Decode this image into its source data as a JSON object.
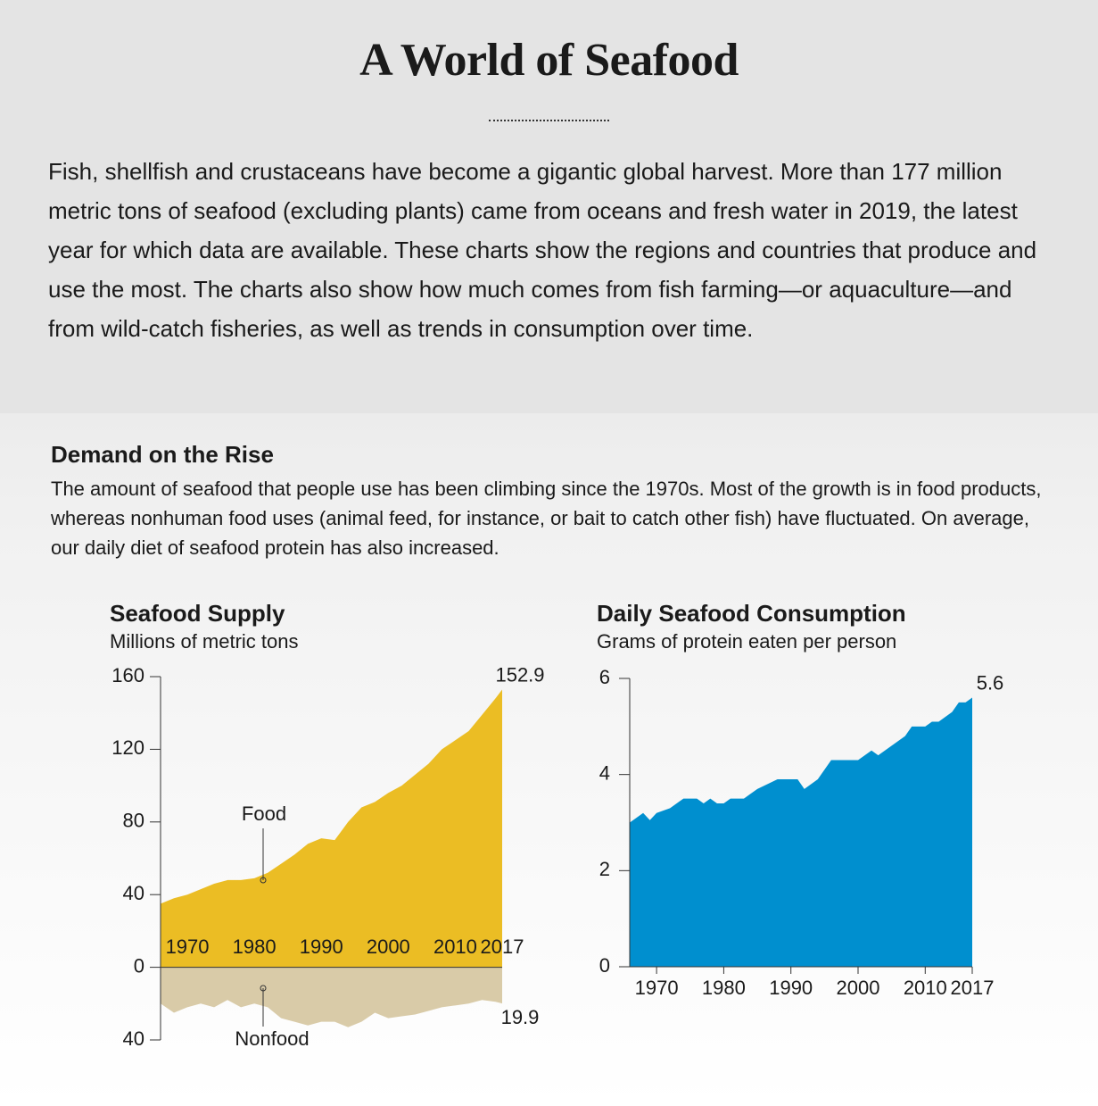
{
  "header": {
    "title": "A World of Seafood",
    "intro": "Fish, shellfish and crustaceans have become a gigantic global harvest. More than 177 million metric tons of seafood (excluding plants) came from oceans and fresh water in 2019, the latest year for which data are available. These charts show the regions and countries that produce and use the most. The charts also show how much comes from fish farming—or aquaculture—and from wild-catch fisheries, as well as trends in consumption over time."
  },
  "section": {
    "title": "Demand on the Rise",
    "description": "The amount of seafood that people use has been climbing since the 1970s. Most of the growth is in food products, whereas nonhuman food uses (animal feed, for instance, or bait to catch other fish) have fluctuated. On average, our daily diet of seafood protein has also increased."
  },
  "chart_data": [
    {
      "type": "area",
      "title": "Seafood Supply",
      "subtitle": "Millions of metric tons",
      "x": [
        1966,
        1968,
        1970,
        1972,
        1974,
        1976,
        1978,
        1980,
        1982,
        1984,
        1986,
        1988,
        1990,
        1992,
        1994,
        1996,
        1998,
        2000,
        2002,
        2004,
        2006,
        2008,
        2010,
        2012,
        2014,
        2016,
        2017
      ],
      "series": [
        {
          "name": "Food",
          "color": "#ebbd24",
          "values": [
            35,
            38,
            40,
            43,
            46,
            48,
            48,
            49,
            52,
            57,
            62,
            68,
            71,
            70,
            80,
            88,
            91,
            96,
            100,
            106,
            112,
            120,
            125,
            130,
            139,
            148,
            152.9
          ]
        },
        {
          "name": "Nonfood",
          "color": "#d9cba8",
          "values": [
            -20,
            -25,
            -22,
            -20,
            -22,
            -18,
            -22,
            -20,
            -22,
            -28,
            -30,
            -32,
            -30,
            -30,
            -33,
            -30,
            -25,
            -28,
            -27,
            -26,
            -24,
            -22,
            -21,
            -20,
            -18,
            -19,
            -19.9
          ],
          "value_labels": [
            null,
            null,
            null,
            null,
            null,
            null,
            null,
            null,
            null,
            null,
            null,
            null,
            null,
            null,
            null,
            null,
            null,
            null,
            null,
            null,
            null,
            null,
            null,
            null,
            null,
            null,
            "19.9"
          ]
        }
      ],
      "xlim": [
        1966,
        2017
      ],
      "xticks": [
        1970,
        1980,
        1990,
        2000,
        2010,
        2017
      ],
      "ylim": [
        -40,
        160
      ],
      "yticks": [
        160,
        120,
        80,
        40,
        0,
        {
          "value": -40,
          "label": "40"
        }
      ]
    },
    {
      "type": "area",
      "title": "Daily Seafood Consumption",
      "subtitle": "Grams of protein eaten per person",
      "x": [
        1966,
        1968,
        1969,
        1970,
        1972,
        1974,
        1976,
        1977,
        1978,
        1979,
        1980,
        1981,
        1983,
        1985,
        1988,
        1991,
        1992,
        1994,
        1996,
        1998,
        2000,
        2002,
        2003,
        2005,
        2007,
        2008,
        2010,
        2011,
        2012,
        2014,
        2015,
        2016,
        2017
      ],
      "series": [
        {
          "name": null,
          "color": "#008fcf",
          "values": [
            3.0,
            3.2,
            3.05,
            3.2,
            3.3,
            3.5,
            3.5,
            3.4,
            3.5,
            3.4,
            3.4,
            3.5,
            3.5,
            3.7,
            3.9,
            3.9,
            3.7,
            3.9,
            4.3,
            4.3,
            4.3,
            4.5,
            4.4,
            4.6,
            4.8,
            5.0,
            5.0,
            5.1,
            5.1,
            5.3,
            5.5,
            5.5,
            5.6
          ]
        }
      ],
      "xlim": [
        1966,
        2017
      ],
      "xticks": [
        1970,
        1980,
        1990,
        2000,
        2010,
        2017
      ],
      "ylim": [
        0,
        6
      ],
      "yticks": [
        0,
        2,
        4,
        6
      ]
    }
  ]
}
